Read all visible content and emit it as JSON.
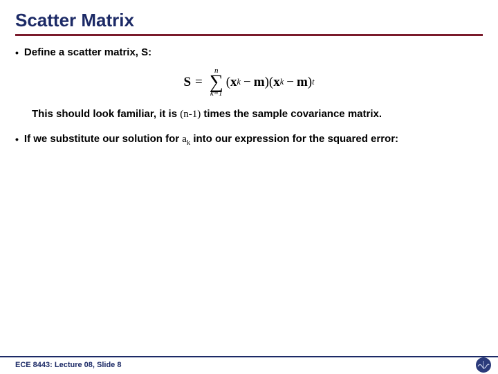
{
  "title": "Scatter Matrix",
  "colors": {
    "title_color": "#1c2a66",
    "rule_color": "#7a1a2b",
    "text_color": "#000000",
    "footer_rule_color": "#1c2a66",
    "footer_text_color": "#1c2a66",
    "logo_bg": "#2b3a7a",
    "logo_stroke": "#cfd6ef",
    "background": "#ffffff"
  },
  "bullets": [
    {
      "text": "Define a scatter matrix, S:"
    }
  ],
  "formula": {
    "lhs": "S",
    "eq": "=",
    "sum_upper": "n",
    "sum_lower": "k=1",
    "open": "(",
    "x": "x",
    "xsub": "k",
    "minus": "−",
    "m": "m",
    "close1": ")(",
    "close2": ")",
    "trans": "t"
  },
  "follow": {
    "pre": "This should look familiar, it is ",
    "expr": "(n-1)",
    "post": " times the sample covariance matrix."
  },
  "bullets2": [
    {
      "pre": "If we substitute our solution for ",
      "var": "a",
      "sub": "k",
      "post": " into our expression for the squared error:"
    }
  ],
  "footer": {
    "text": "ECE 8443: Lecture 08, Slide 8"
  },
  "typography": {
    "title_fontsize": 26,
    "body_fontsize": 15,
    "footer_fontsize": 11,
    "formula_fontsize": 19
  }
}
